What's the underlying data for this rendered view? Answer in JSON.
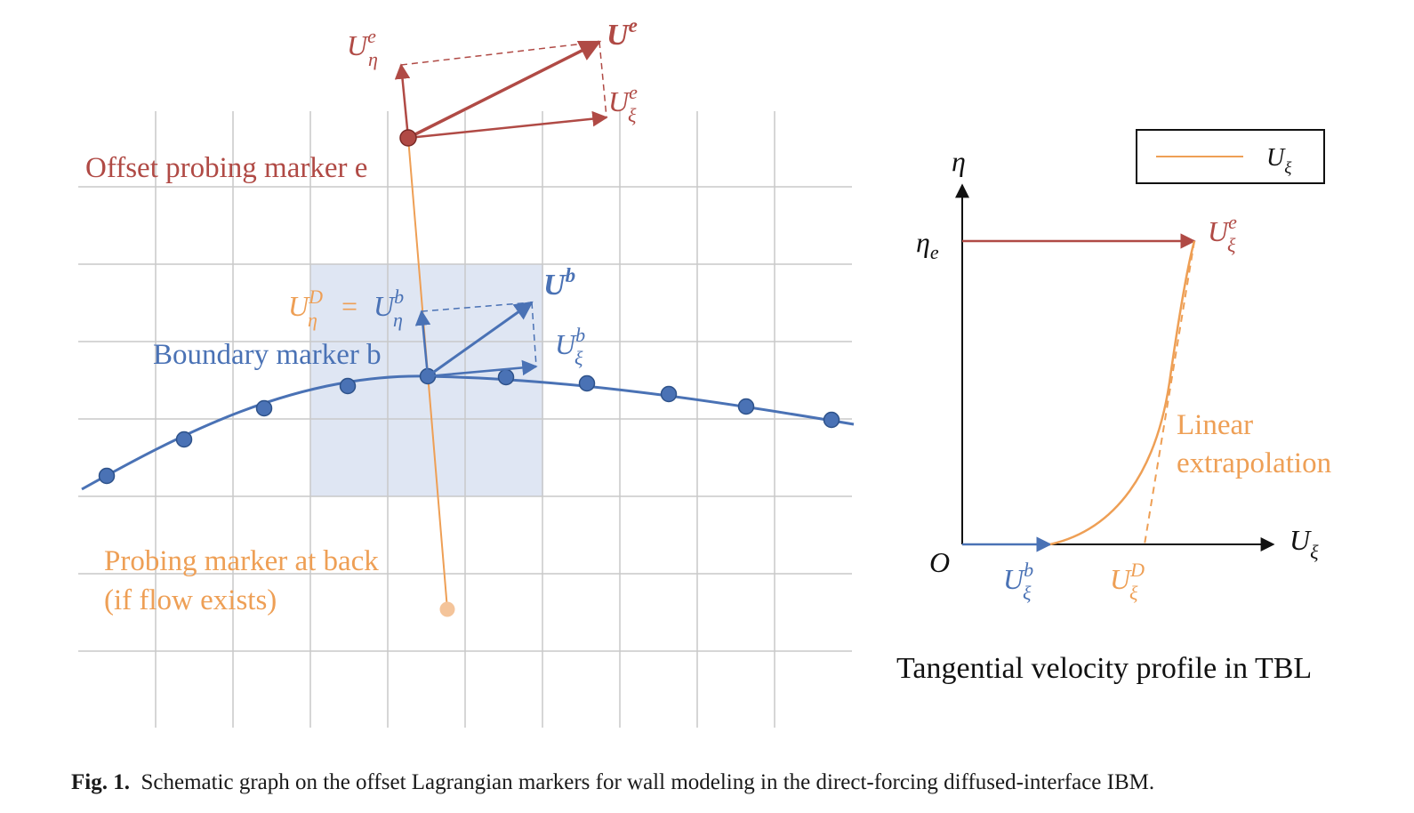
{
  "colors": {
    "red": "#b04a45",
    "blue": "#4a72b5",
    "orange": "#ee9f55",
    "light_orange": "#f4c49a",
    "grid": "#c9c9c9",
    "highlight": "#dfe6f3",
    "black": "#111111"
  },
  "left_panel": {
    "offset_marker_label": "Offset probing marker e",
    "boundary_marker_label": "Boundary marker b",
    "back_marker_label_line1": "Probing marker at back",
    "back_marker_label_line2": "(if flow exists)",
    "vec_Ue": {
      "base": "U",
      "sup": "e"
    },
    "vec_Ue_eta": {
      "base": "U",
      "sup": "e",
      "sub": "η"
    },
    "vec_Ue_xi": {
      "base": "U",
      "sup": "e",
      "sub": "ξ"
    },
    "vec_Ub": {
      "base": "U",
      "sup": "b"
    },
    "vec_Ub_xi": {
      "base": "U",
      "sup": "b",
      "sub": "ξ"
    },
    "eq_left": {
      "base": "U",
      "sup": "D",
      "sub": "η"
    },
    "eq_sign": "=",
    "eq_right": {
      "base": "U",
      "sup": "b",
      "sub": "η"
    }
  },
  "right_panel": {
    "y_axis_label": "η",
    "eta_e_label": {
      "base": "η",
      "sub": "e"
    },
    "origin_label": "O",
    "x_axis_label": {
      "base": "U",
      "sub": "ξ"
    },
    "legend_label": {
      "base": "U",
      "sub": "ξ"
    },
    "Ue_xi_label": {
      "base": "U",
      "sup": "e",
      "sub": "ξ"
    },
    "Ub_xi_label": {
      "base": "U",
      "sup": "b",
      "sub": "ξ"
    },
    "UD_xi_label": {
      "base": "U",
      "sup": "D",
      "sub": "ξ"
    },
    "extrap_line1": "Linear",
    "extrap_line2": "extrapolation",
    "title": "Tangential velocity profile in TBL"
  },
  "caption": {
    "label": "Fig. 1.",
    "text": "Schematic graph on the offset Lagrangian markers for wall modeling in the direct-forcing diffused-interface IBM."
  }
}
